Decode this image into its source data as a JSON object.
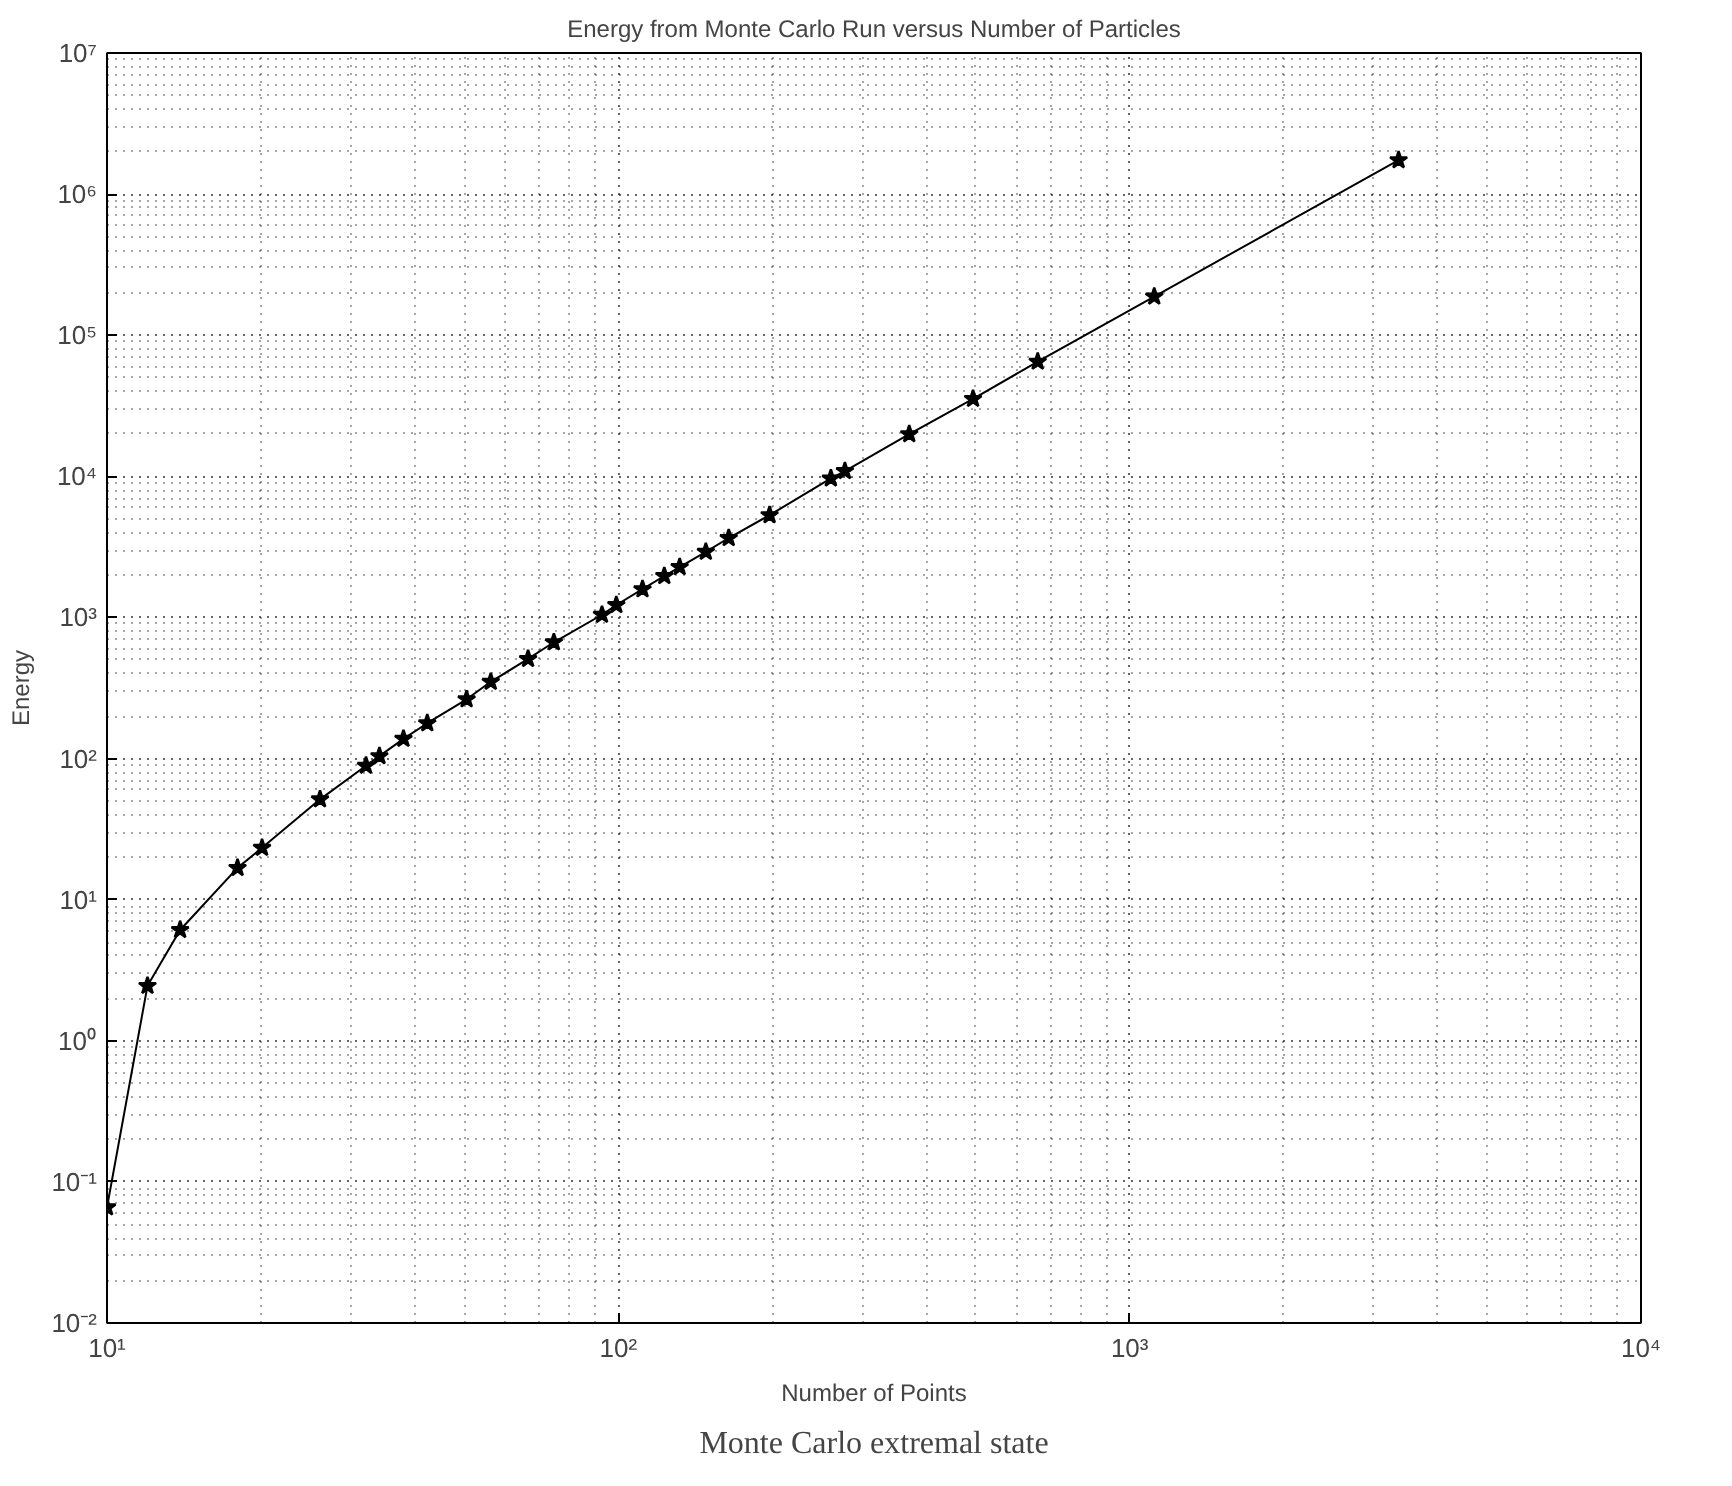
{
  "chart_data": {
    "type": "line",
    "title": "Energy from Monte Carlo Run versus Number of Particles",
    "xlabel": "Number of Points",
    "ylabel": "Energy",
    "annotations": [
      "Monte Carlo extremal state"
    ],
    "log": "xy",
    "grid": true,
    "marker": "star",
    "line_style": "solid",
    "x": [
      10,
      12.0,
      13.9,
      18.0,
      20.1,
      26.1,
      32.1,
      34.1,
      38.0,
      42.3,
      50.5,
      56.3,
      66.6,
      74.8,
      92.9,
      99.1,
      111.5,
      123,
      131.8,
      148.3,
      164.4,
      197.6,
      260.4,
      277.4,
      370.6,
      494,
      661,
      1117,
      3357
    ],
    "series": [
      {
        "color": "#000000",
        "values": [
          0.066,
          2.45,
          6.1,
          16.8,
          23.3,
          51.4,
          89,
          104,
          138,
          178,
          263,
          350,
          508,
          667,
          1045,
          1225,
          1585,
          1966,
          2275,
          2917,
          3655,
          5310,
          9660,
          10900,
          19900,
          35400,
          65000,
          188000,
          1740000
        ]
      }
    ],
    "xlim": [
      10,
      10000
    ],
    "ylim": [
      0.01,
      10000000
    ],
    "xticks": [
      {
        "value": 10,
        "label": "10¹"
      },
      {
        "value": 100,
        "label": "10²"
      },
      {
        "value": 1000,
        "label": "10³"
      },
      {
        "value": 10000,
        "label": "10⁴"
      }
    ],
    "yticks": [
      {
        "value": 0.01,
        "label": "10⁻²"
      },
      {
        "value": 0.1,
        "label": "10⁻¹"
      },
      {
        "value": 1,
        "label": "10⁰"
      },
      {
        "value": 10,
        "label": "10¹"
      },
      {
        "value": 100,
        "label": "10²"
      },
      {
        "value": 1000,
        "label": "10³"
      },
      {
        "value": 10000,
        "label": "10⁴"
      },
      {
        "value": 100000,
        "label": "10⁵"
      },
      {
        "value": 1000000,
        "label": "10⁶"
      },
      {
        "value": 10000000,
        "label": "10⁷"
      }
    ]
  }
}
